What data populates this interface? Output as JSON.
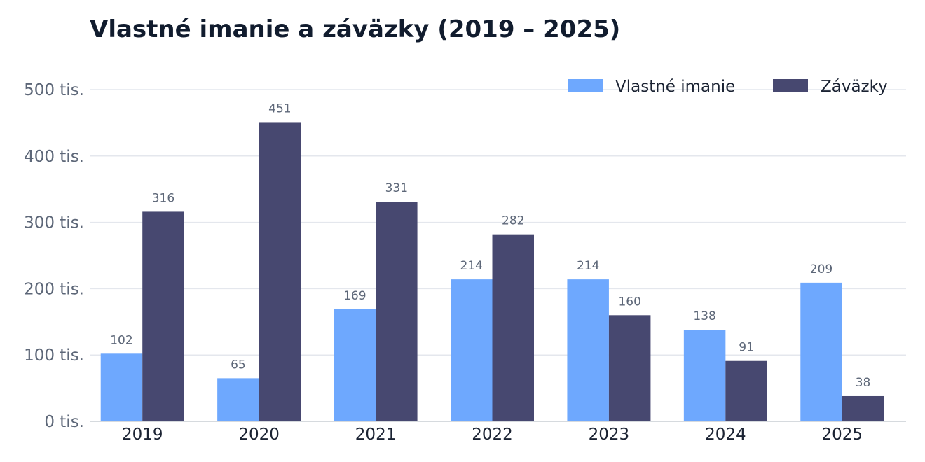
{
  "chart_data": {
    "type": "bar",
    "title": "Vlastné imanie a záväzky (2019 – 2025)",
    "categories": [
      "2019",
      "2020",
      "2021",
      "2022",
      "2023",
      "2024",
      "2025"
    ],
    "series": [
      {
        "name": "Vlastné imanie",
        "color": "#6ea8fe",
        "values": [
          102,
          65,
          169,
          214,
          214,
          138,
          209
        ]
      },
      {
        "name": "Záväzky",
        "color": "#474870",
        "values": [
          316,
          451,
          331,
          282,
          160,
          91,
          38
        ]
      }
    ],
    "ylim": [
      0,
      500
    ],
    "yticks": [
      0,
      100,
      200,
      300,
      400,
      500
    ],
    "ytick_labels": [
      "0 tis.",
      "100 tis.",
      "200 tis.",
      "300 tis.",
      "400 tis.",
      "500 tis."
    ],
    "xlabel": "",
    "ylabel": "",
    "grid": true,
    "legend_position": "top-right"
  }
}
